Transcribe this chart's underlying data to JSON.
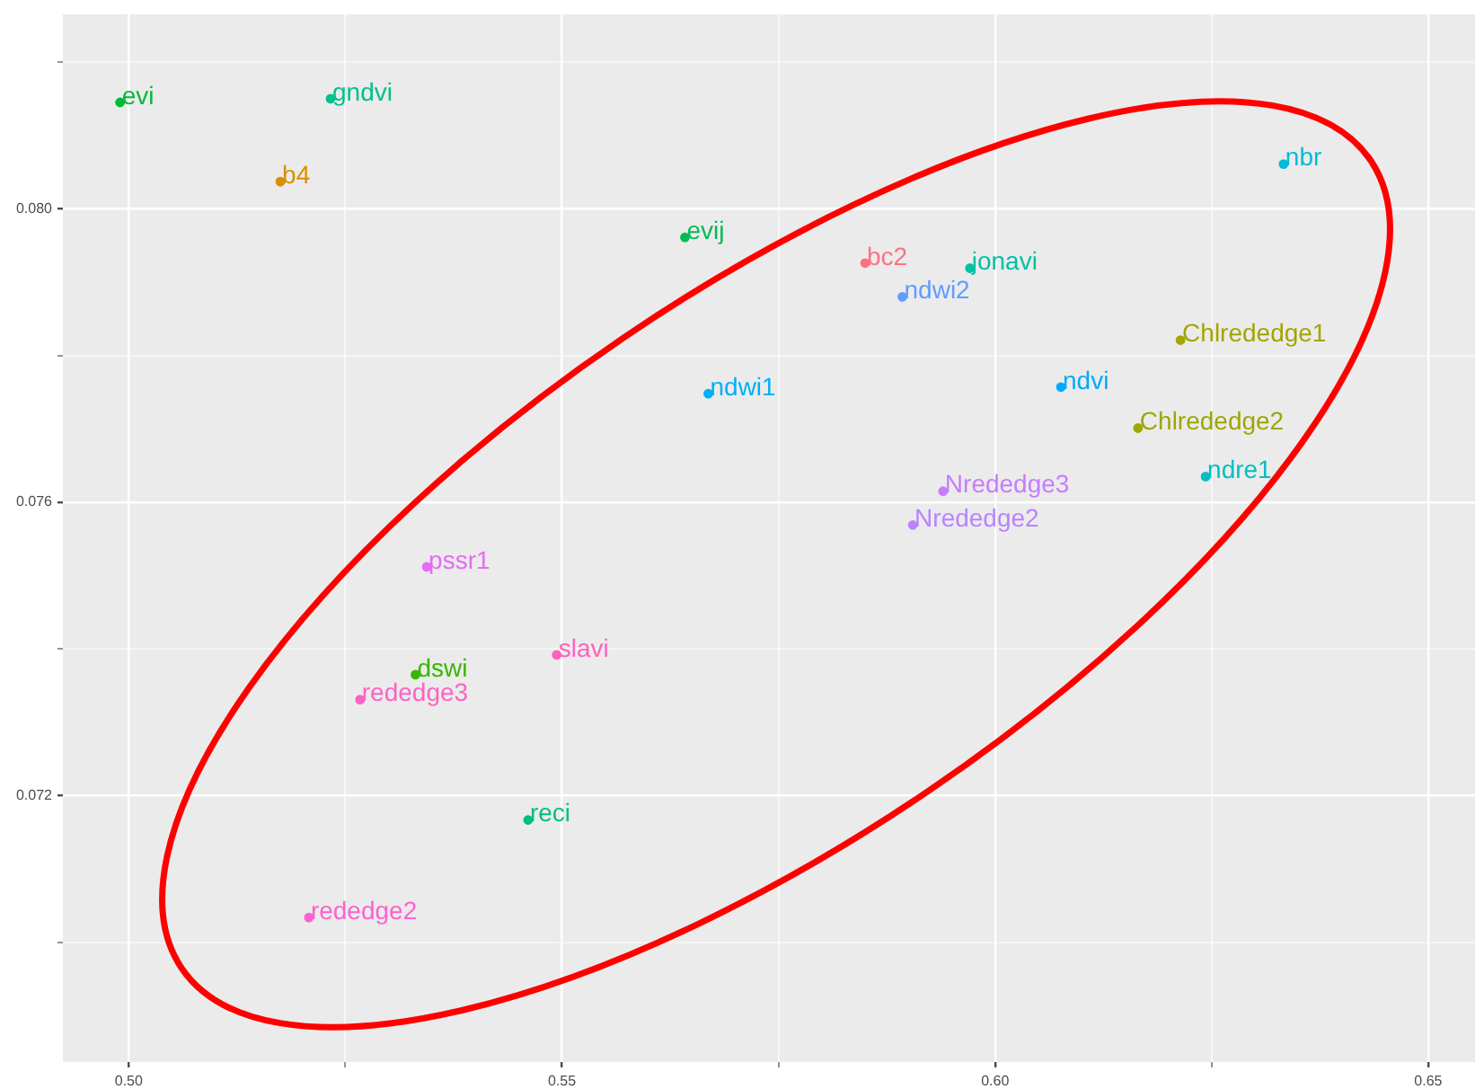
{
  "chart_data": {
    "type": "scatter",
    "marker": "circle",
    "grid": true,
    "xlim": [
      0.4924,
      0.6554
    ],
    "ylim": [
      0.06837,
      0.08265
    ],
    "xticks": [
      {
        "value": 0.5,
        "label": "0.50"
      },
      {
        "value": 0.525,
        "label": null
      },
      0.55,
      {
        "value": 0.575,
        "label": null
      },
      {
        "value": 0.6,
        "label": "0.60"
      },
      {
        "value": 0.625,
        "label": null
      },
      0.65
    ],
    "yticks": [
      {
        "value": 0.07,
        "label": null
      },
      0.072,
      {
        "value": 0.074,
        "label": null
      },
      0.076,
      {
        "value": 0.078,
        "label": null
      },
      {
        "value": 0.08,
        "label": "0.080"
      },
      {
        "value": 0.082,
        "label": null
      }
    ],
    "series": [
      {
        "name": "evi",
        "color": "#00ba38",
        "x": [
          0.499
        ],
        "values": [
          0.08145
        ]
      },
      {
        "name": "gndvi",
        "color": "#00c08b",
        "x": [
          0.5233
        ],
        "values": [
          0.0815
        ]
      },
      {
        "name": "b4",
        "color": "#d89000",
        "x": [
          0.5175
        ],
        "values": [
          0.08037
        ]
      },
      {
        "name": "evij",
        "color": "#00bc56",
        "x": [
          0.5642
        ],
        "values": [
          0.07961
        ]
      },
      {
        "name": "bc2",
        "color": "#fc717f",
        "x": [
          0.585
        ],
        "values": [
          0.07926
        ]
      },
      {
        "name": "jonavi",
        "color": "#00c1a3",
        "x": [
          0.5971
        ],
        "values": [
          0.07919
        ]
      },
      {
        "name": "ndwi2",
        "color": "#619cff",
        "x": [
          0.5893
        ],
        "values": [
          0.0788
        ]
      },
      {
        "name": "nbr",
        "color": "#00bcd8",
        "x": [
          0.6333
        ],
        "values": [
          0.08061
        ]
      },
      {
        "name": "Chlrededge1",
        "color": "#a3a500",
        "x": [
          0.6214
        ],
        "values": [
          0.07821
        ]
      },
      {
        "name": "ndvi",
        "color": "#00a9ff",
        "x": [
          0.6076
        ],
        "values": [
          0.07757
        ]
      },
      {
        "name": "ndwi1",
        "color": "#00b0f6",
        "x": [
          0.5669
        ],
        "values": [
          0.07748
        ]
      },
      {
        "name": "Chlrededge2",
        "color": "#9ca700",
        "x": [
          0.6165
        ],
        "values": [
          0.07701
        ]
      },
      {
        "name": "ndre1",
        "color": "#00bfc4",
        "x": [
          0.6243
        ],
        "values": [
          0.07635
        ]
      },
      {
        "name": "Nrededge3",
        "color": "#c77cff",
        "x": [
          0.594
        ],
        "values": [
          0.07615
        ]
      },
      {
        "name": "Nrededge2",
        "color": "#b983ff",
        "x": [
          0.5905
        ],
        "values": [
          0.07569
        ]
      },
      {
        "name": "pssr1",
        "color": "#e76bf3",
        "x": [
          0.5344
        ],
        "values": [
          0.07512
        ]
      },
      {
        "name": "slavi",
        "color": "#ff62bc",
        "x": [
          0.5494
        ],
        "values": [
          0.07392
        ]
      },
      {
        "name": "dswi",
        "color": "#39b600",
        "x": [
          0.5331
        ],
        "values": [
          0.07365
        ]
      },
      {
        "name": "rededge3",
        "color": "#ff61c3",
        "x": [
          0.5267
        ],
        "values": [
          0.07331
        ]
      },
      {
        "name": "reci",
        "color": "#00bf7d",
        "x": [
          0.5461
        ],
        "values": [
          0.07167
        ]
      },
      {
        "name": "rededge2",
        "color": "#fd61d1",
        "x": [
          0.5208
        ],
        "values": [
          0.07034
        ]
      }
    ]
  }
}
